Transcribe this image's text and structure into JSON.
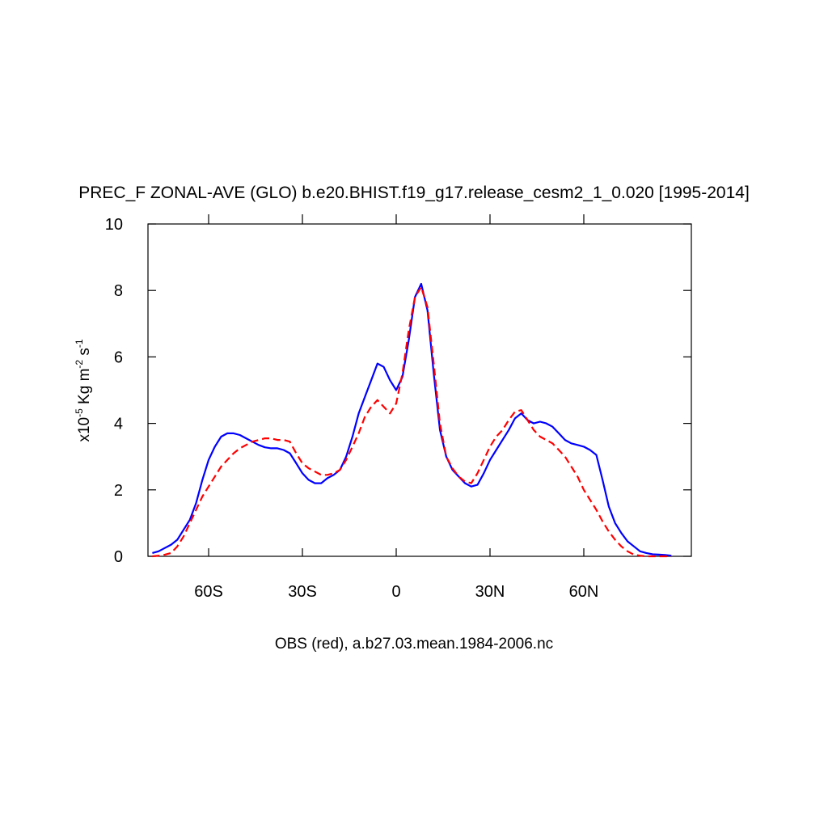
{
  "chart_data": {
    "type": "line",
    "title": "PREC_F ZONAL-AVE (GLO) b.e20.BHIST.f19_g17.release_cesm2_1_0.020 [1995-2014]",
    "x_label": "OBS (red), a.b27.03.mean.1984-2006.nc",
    "y_label": [
      "x10",
      "-5",
      " Kg m",
      "-2",
      " s",
      "-1"
    ],
    "x": [
      -78,
      -76,
      -74,
      -72,
      -70,
      -68,
      -66,
      -64,
      -62,
      -60,
      -58,
      -56,
      -54,
      -52,
      -50,
      -48,
      -46,
      -44,
      -42,
      -40,
      -38,
      -36,
      -34,
      -32,
      -30,
      -28,
      -26,
      -24,
      -22,
      -20,
      -18,
      -16,
      -14,
      -12,
      -10,
      -8,
      -6,
      -4,
      -2,
      0,
      2,
      4,
      6,
      8,
      10,
      12,
      14,
      16,
      18,
      20,
      22,
      24,
      26,
      28,
      30,
      32,
      34,
      36,
      38,
      40,
      42,
      44,
      46,
      48,
      50,
      52,
      54,
      56,
      58,
      60,
      62,
      64,
      66,
      68,
      70,
      72,
      74,
      76,
      78,
      80,
      82,
      84,
      86,
      88
    ],
    "series": [
      {
        "color": "#0000ff",
        "style": "solid",
        "values": [
          0.1,
          0.15,
          0.25,
          0.35,
          0.5,
          0.8,
          1.1,
          1.6,
          2.3,
          2.9,
          3.3,
          3.6,
          3.7,
          3.7,
          3.65,
          3.55,
          3.45,
          3.35,
          3.28,
          3.25,
          3.25,
          3.2,
          3.1,
          2.8,
          2.5,
          2.3,
          2.2,
          2.2,
          2.35,
          2.45,
          2.6,
          3.0,
          3.6,
          4.3,
          4.8,
          5.3,
          5.8,
          5.7,
          5.3,
          5.0,
          5.4,
          6.5,
          7.8,
          8.2,
          7.4,
          5.5,
          3.8,
          3.0,
          2.6,
          2.4,
          2.2,
          2.1,
          2.15,
          2.5,
          2.9,
          3.2,
          3.5,
          3.8,
          4.15,
          4.3,
          4.1,
          4.0,
          4.05,
          4.0,
          3.9,
          3.7,
          3.5,
          3.4,
          3.35,
          3.3,
          3.2,
          3.05,
          2.3,
          1.5,
          1.0,
          0.7,
          0.45,
          0.3,
          0.15,
          0.1,
          0.06,
          0.05,
          0.04,
          0.02
        ]
      },
      {
        "color": "#ff0000",
        "style": "dashed",
        "values": [
          0,
          0.02,
          0.05,
          0.1,
          0.3,
          0.6,
          1.0,
          1.4,
          1.8,
          2.1,
          2.4,
          2.7,
          2.9,
          3.1,
          3.25,
          3.35,
          3.45,
          3.5,
          3.55,
          3.55,
          3.5,
          3.5,
          3.45,
          3.1,
          2.8,
          2.65,
          2.55,
          2.45,
          2.45,
          2.5,
          2.6,
          2.9,
          3.3,
          3.7,
          4.2,
          4.5,
          4.7,
          4.5,
          4.3,
          4.6,
          5.5,
          6.8,
          7.8,
          8.1,
          7.5,
          5.8,
          4.0,
          3.0,
          2.65,
          2.4,
          2.25,
          2.2,
          2.5,
          2.9,
          3.3,
          3.6,
          3.8,
          4.1,
          4.35,
          4.4,
          4.1,
          3.8,
          3.6,
          3.5,
          3.4,
          3.2,
          3.0,
          2.7,
          2.4,
          2.0,
          1.7,
          1.4,
          1.05,
          0.75,
          0.5,
          0.3,
          0.15,
          0.05,
          0.02,
          0,
          0,
          0,
          0,
          0
        ]
      }
    ],
    "xlim": [
      -79.4,
      94.4
    ],
    "xticks": [
      {
        "value": -60,
        "label": "60S"
      },
      {
        "value": -30,
        "label": "30S"
      },
      0,
      {
        "value": 30,
        "label": "30N"
      },
      {
        "value": 60,
        "label": "60N"
      }
    ],
    "ylim": [
      0,
      10
    ],
    "yticks": [
      0,
      2,
      4,
      6,
      8,
      10
    ]
  }
}
